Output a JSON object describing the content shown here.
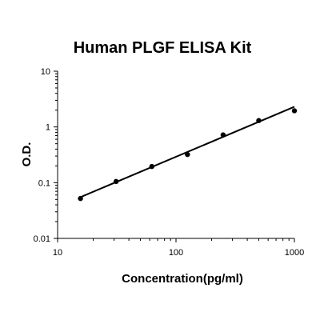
{
  "chart_data": {
    "type": "scatter",
    "title": "Human PLGF ELISA Kit",
    "xlabel": "Concentration(pg/ml)",
    "ylabel": "O.D.",
    "x_scale": "log",
    "y_scale": "log",
    "xlim": [
      10,
      1000
    ],
    "ylim": [
      0.01,
      10
    ],
    "x_ticks": [
      {
        "value": 10,
        "label": "10"
      },
      {
        "value": 100,
        "label": "100"
      },
      {
        "value": 1000,
        "label": "1000"
      }
    ],
    "y_ticks": [
      {
        "value": 0.01,
        "label": "0.01"
      },
      {
        "value": 0.1,
        "label": "0.1"
      },
      {
        "value": 1,
        "label": "1"
      },
      {
        "value": 10,
        "label": "10"
      }
    ],
    "grid": false,
    "legend": "none",
    "series": [
      {
        "points": [
          {
            "x": 15.6,
            "y": 0.052
          },
          {
            "x": 31.2,
            "y": 0.105
          },
          {
            "x": 62.5,
            "y": 0.195
          },
          {
            "x": 125,
            "y": 0.32
          },
          {
            "x": 250,
            "y": 0.72
          },
          {
            "x": 500,
            "y": 1.3
          },
          {
            "x": 1000,
            "y": 1.95
          }
        ]
      }
    ],
    "fit_line": [
      {
        "x": 15.6,
        "y": 0.055
      },
      {
        "x": 1000,
        "y": 2.3
      }
    ]
  }
}
